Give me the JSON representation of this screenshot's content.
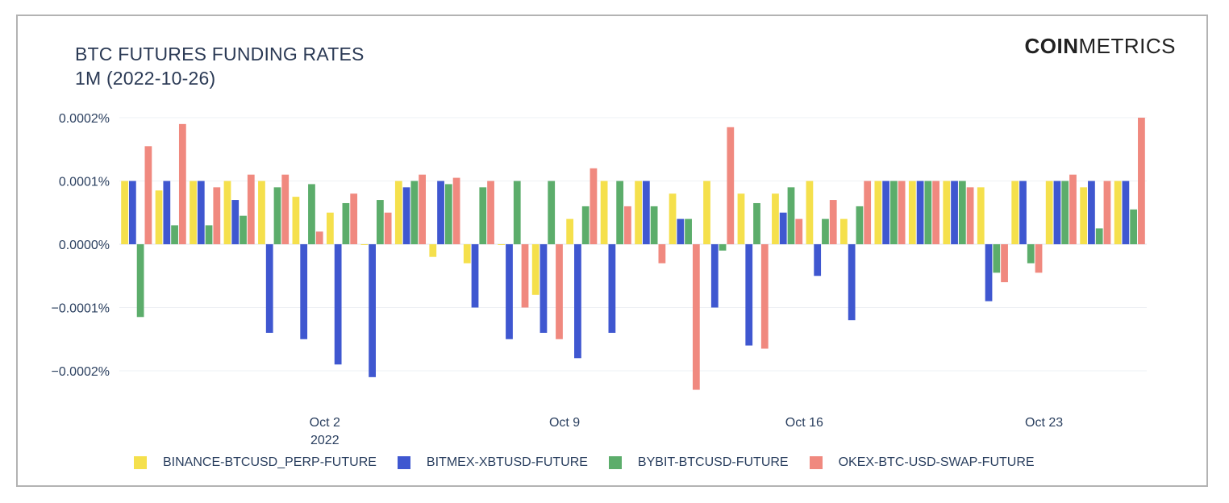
{
  "header": {
    "title_line1": "BTC FUTURES FUNDING RATES",
    "title_line2": "1M (2022-10-26)",
    "brand_bold": "COIN",
    "brand_light": "METRICS"
  },
  "chart_data": {
    "type": "bar",
    "x": [
      "2022-09-26",
      "2022-09-27",
      "2022-09-28",
      "2022-09-29",
      "2022-09-30",
      "2022-10-01",
      "2022-10-02",
      "2022-10-03",
      "2022-10-04",
      "2022-10-05",
      "2022-10-06",
      "2022-10-07",
      "2022-10-08",
      "2022-10-09",
      "2022-10-10",
      "2022-10-11",
      "2022-10-12",
      "2022-10-13",
      "2022-10-14",
      "2022-10-15",
      "2022-10-16",
      "2022-10-17",
      "2022-10-18",
      "2022-10-19",
      "2022-10-20",
      "2022-10-21",
      "2022-10-22",
      "2022-10-23",
      "2022-10-24",
      "2022-10-25"
    ],
    "ylim": [
      -0.00023,
      0.0002
    ],
    "yticks": [
      0.0002,
      0.0001,
      0.0,
      -0.0001,
      -0.0002
    ],
    "ytick_labels": [
      "0.0002%",
      "0.0001%",
      "0.0000%",
      "−0.0001%",
      "−0.0002%"
    ],
    "xtick_labels": [
      {
        "date": "2022-10-02",
        "line1": "Oct 2",
        "line2": "2022"
      },
      {
        "date": "2022-10-09",
        "line1": "Oct 9",
        "line2": ""
      },
      {
        "date": "2022-10-16",
        "line1": "Oct 16",
        "line2": ""
      },
      {
        "date": "2022-10-23",
        "line1": "Oct 23",
        "line2": ""
      }
    ],
    "grid": true,
    "legend_position": "bottom",
    "series": [
      {
        "name": "BINANCE-BTCUSD_PERP-FUTURE",
        "color": "#f5e04c",
        "values": [
          0.0001,
          8.5e-05,
          0.0001,
          0.0001,
          0.0001,
          7.5e-05,
          5e-05,
          0.0,
          0.0001,
          -2e-05,
          -3e-05,
          0.0,
          -8e-05,
          4e-05,
          0.0001,
          0.0001,
          8e-05,
          0.0001,
          8e-05,
          8e-05,
          0.0001,
          4e-05,
          0.0001,
          0.0001,
          0.0001,
          9e-05,
          0.0001,
          0.0001,
          9e-05,
          0.0001
        ]
      },
      {
        "name": "BITMEX-XBTUSD-FUTURE",
        "color": "#3f57d0",
        "values": [
          0.0001,
          0.0001,
          0.0001,
          7e-05,
          -0.00014,
          -0.00015,
          -0.00019,
          -0.00021,
          9e-05,
          0.0001,
          -0.0001,
          -0.00015,
          -0.00014,
          -0.00018,
          -0.00014,
          0.0001,
          4e-05,
          -0.0001,
          -0.00016,
          5e-05,
          -5e-05,
          -0.00012,
          0.0001,
          0.0001,
          0.0001,
          -9e-05,
          0.0001,
          0.0001,
          0.0001,
          0.0001
        ]
      },
      {
        "name": "BYBIT-BTCUSD-FUTURE",
        "color": "#5cad6b",
        "values": [
          -0.000115,
          3e-05,
          3e-05,
          4.5e-05,
          9e-05,
          9.5e-05,
          6.5e-05,
          7e-05,
          0.0001,
          9.5e-05,
          9e-05,
          0.0001,
          0.0001,
          6e-05,
          0.0001,
          6e-05,
          4e-05,
          -1e-05,
          6.5e-05,
          9e-05,
          4e-05,
          6e-05,
          0.0001,
          0.0001,
          0.0001,
          -4.5e-05,
          -3e-05,
          0.0001,
          2.5e-05,
          5.5e-05
        ]
      },
      {
        "name": "OKEX-BTC-USD-SWAP-FUTURE",
        "color": "#f0897f",
        "values": [
          0.000155,
          0.00019,
          9e-05,
          0.00011,
          0.00011,
          2e-05,
          8e-05,
          5e-05,
          0.00011,
          0.000105,
          0.0001,
          -0.0001,
          -0.00015,
          0.00012,
          6e-05,
          -3e-05,
          -0.00023,
          0.000185,
          -0.000165,
          4e-05,
          7e-05,
          0.0001,
          0.0001,
          0.0001,
          9e-05,
          -6e-05,
          -4.5e-05,
          0.00011,
          0.0001,
          0.0002
        ]
      }
    ]
  }
}
